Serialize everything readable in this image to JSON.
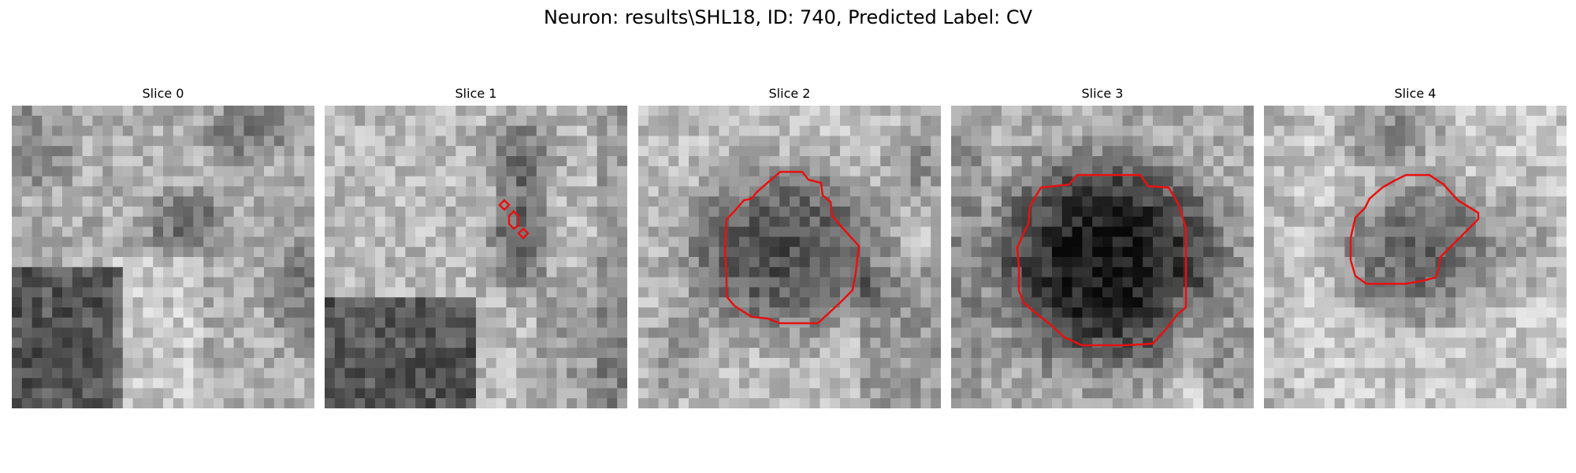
{
  "figure": {
    "title": "Neuron: results\\SHL18, ID: 740, Predicted Label: CV",
    "colors": {
      "contour": "#e81010",
      "background": "#ffffff"
    },
    "grid_size": 30,
    "panels": [
      {
        "title": "Slice 0",
        "has_contour": false
      },
      {
        "title": "Slice 1",
        "has_contour": true
      },
      {
        "title": "Slice 2",
        "has_contour": true
      },
      {
        "title": "Slice 3",
        "has_contour": true
      },
      {
        "title": "Slice 4",
        "has_contour": true
      }
    ]
  }
}
